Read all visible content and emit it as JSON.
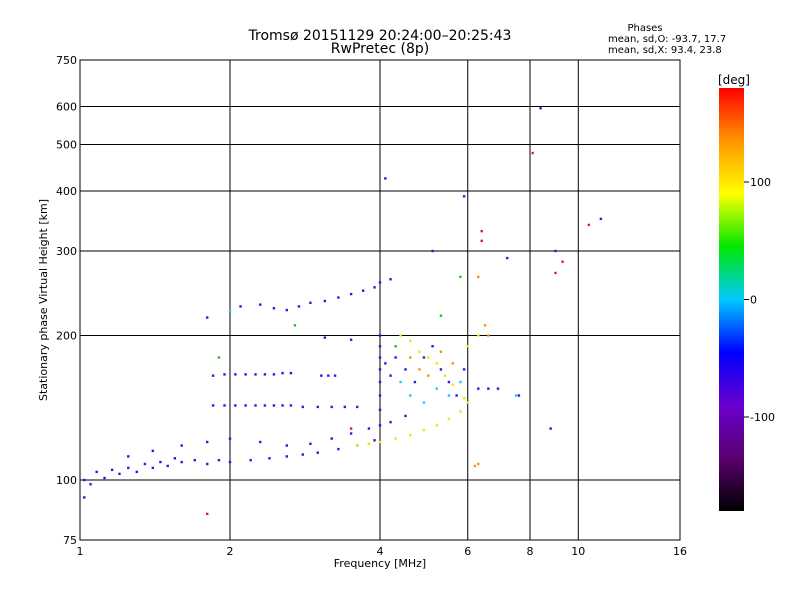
{
  "chart_data": {
    "type": "scatter",
    "title": "Tromsø 20151129 20:24:00–20:25:43",
    "subtitle": "RwPretec (8p)",
    "xlabel": "Frequency [MHz]",
    "ylabel": "Stationary phase Virtual Height [km]",
    "x_scale": "log",
    "y_scale": "log",
    "xlim": [
      1,
      16
    ],
    "ylim": [
      75,
      750
    ],
    "x_ticks": [
      1,
      2,
      4,
      6,
      8,
      10,
      16
    ],
    "y_ticks": [
      75,
      100,
      200,
      300,
      400,
      500,
      600,
      750
    ],
    "x_grid": [
      2,
      4,
      6,
      8,
      10
    ],
    "y_grid": [
      100,
      200,
      300,
      400,
      500,
      600
    ],
    "legend": {
      "heading": "Phases",
      "line_o": "mean, sd,O: -93.7, 17.7",
      "line_x": "mean, sd,X:  93.4, 23.8"
    },
    "colorbar": {
      "label": "[deg]",
      "ticks": [
        100,
        0,
        -100
      ],
      "range": [
        -180,
        180
      ],
      "scale": [
        "#000000",
        "#5a006e",
        "#6a00d0",
        "#0000ff",
        "#00c8ff",
        "#00e800",
        "#ffff00",
        "#ff9600",
        "#ff0000"
      ]
    },
    "series": [
      {
        "color": "#2020e0",
        "points": [
          [
            1.02,
            100
          ],
          [
            1.05,
            98
          ],
          [
            1.08,
            104
          ],
          [
            1.12,
            101
          ],
          [
            1.16,
            105
          ],
          [
            1.2,
            103
          ],
          [
            1.25,
            106
          ],
          [
            1.3,
            104
          ],
          [
            1.35,
            108
          ],
          [
            1.4,
            106
          ],
          [
            1.45,
            109
          ],
          [
            1.5,
            107
          ],
          [
            1.55,
            111
          ],
          [
            1.6,
            109
          ],
          [
            1.7,
            110
          ],
          [
            1.8,
            108
          ],
          [
            1.9,
            110
          ],
          [
            2.0,
            109
          ],
          [
            2.2,
            110
          ],
          [
            2.4,
            111
          ],
          [
            2.6,
            112
          ],
          [
            2.8,
            113
          ],
          [
            3.0,
            114
          ],
          [
            3.3,
            116
          ],
          [
            3.6,
            118
          ],
          [
            3.9,
            121
          ],
          [
            1.25,
            112
          ],
          [
            1.4,
            115
          ],
          [
            1.6,
            118
          ],
          [
            1.8,
            120
          ],
          [
            2.0,
            122
          ],
          [
            2.3,
            120
          ],
          [
            2.6,
            118
          ],
          [
            2.9,
            119
          ],
          [
            3.2,
            122
          ],
          [
            3.5,
            125
          ],
          [
            3.8,
            128
          ],
          [
            4.0,
            130
          ],
          [
            4.2,
            132
          ],
          [
            4.5,
            136
          ]
        ]
      },
      {
        "color": "#2020e0",
        "points": [
          [
            1.85,
            165
          ],
          [
            1.95,
            166
          ],
          [
            2.05,
            166
          ],
          [
            2.15,
            166
          ],
          [
            2.25,
            166
          ],
          [
            2.35,
            166
          ],
          [
            2.45,
            166
          ],
          [
            2.55,
            167
          ],
          [
            2.65,
            167
          ],
          [
            3.05,
            165
          ],
          [
            3.15,
            165
          ],
          [
            3.25,
            165
          ]
        ]
      },
      {
        "color": "#2020e0",
        "points": [
          [
            1.85,
            143
          ],
          [
            1.95,
            143
          ],
          [
            2.05,
            143
          ],
          [
            2.15,
            143
          ],
          [
            2.25,
            143
          ],
          [
            2.35,
            143
          ],
          [
            2.45,
            143
          ],
          [
            2.55,
            143
          ],
          [
            2.65,
            143
          ],
          [
            2.8,
            142
          ],
          [
            3.0,
            142
          ],
          [
            3.2,
            142
          ],
          [
            3.4,
            142
          ],
          [
            3.6,
            142
          ]
        ]
      },
      {
        "color": "#2020e0",
        "points": [
          [
            1.8,
            218
          ],
          [
            2.1,
            230
          ],
          [
            2.3,
            232
          ],
          [
            2.45,
            228
          ],
          [
            2.6,
            226
          ],
          [
            2.75,
            230
          ],
          [
            2.9,
            234
          ],
          [
            3.1,
            236
          ],
          [
            3.3,
            240
          ],
          [
            3.5,
            244
          ],
          [
            3.7,
            248
          ],
          [
            3.9,
            252
          ],
          [
            4.0,
            258
          ],
          [
            4.2,
            262
          ],
          [
            3.1,
            198
          ],
          [
            3.5,
            196
          ]
        ]
      },
      {
        "color": "#2020e0",
        "points": [
          [
            4.0,
            140
          ],
          [
            4.0,
            150
          ],
          [
            4.0,
            160
          ],
          [
            4.0,
            170
          ],
          [
            4.0,
            180
          ],
          [
            4.0,
            190
          ],
          [
            4.0,
            200
          ],
          [
            4.1,
            175
          ],
          [
            4.2,
            165
          ],
          [
            4.3,
            180
          ],
          [
            4.5,
            170
          ],
          [
            4.7,
            160
          ],
          [
            4.9,
            180
          ],
          [
            5.1,
            190
          ],
          [
            5.3,
            170
          ],
          [
            5.5,
            160
          ],
          [
            5.7,
            150
          ],
          [
            5.9,
            170
          ],
          [
            6.3,
            155
          ],
          [
            6.6,
            155
          ],
          [
            6.9,
            155
          ]
        ]
      },
      {
        "color": "#ffe000",
        "points": [
          [
            3.6,
            118
          ],
          [
            3.8,
            119
          ],
          [
            4.0,
            120
          ],
          [
            4.3,
            122
          ],
          [
            4.6,
            124
          ],
          [
            4.9,
            127
          ],
          [
            5.2,
            130
          ],
          [
            5.5,
            134
          ],
          [
            5.8,
            139
          ],
          [
            6.0,
            145
          ],
          [
            4.4,
            200
          ],
          [
            4.6,
            195
          ],
          [
            4.8,
            185
          ],
          [
            5.0,
            180
          ],
          [
            5.2,
            175
          ],
          [
            5.4,
            165
          ],
          [
            5.6,
            158
          ],
          [
            5.9,
            148
          ],
          [
            6.0,
            190
          ],
          [
            6.3,
            200
          ]
        ]
      },
      {
        "color": "#ff9000",
        "points": [
          [
            4.6,
            180
          ],
          [
            4.8,
            170
          ],
          [
            5.0,
            165
          ],
          [
            5.3,
            185
          ],
          [
            5.6,
            175
          ],
          [
            6.3,
            265
          ],
          [
            6.5,
            210
          ],
          [
            6.6,
            200
          ],
          [
            6.3,
            108
          ],
          [
            6.2,
            107
          ]
        ]
      },
      {
        "color": "#e02020",
        "points": [
          [
            6.4,
            330
          ],
          [
            6.4,
            315
          ],
          [
            8.1,
            480
          ],
          [
            9.0,
            270
          ],
          [
            9.3,
            285
          ],
          [
            10.5,
            340
          ],
          [
            1.8,
            85
          ],
          [
            3.5,
            128
          ]
        ]
      },
      {
        "color": "#20c8ff",
        "points": [
          [
            4.4,
            160
          ],
          [
            4.6,
            150
          ],
          [
            4.9,
            145
          ],
          [
            5.2,
            155
          ],
          [
            5.5,
            150
          ],
          [
            5.8,
            160
          ],
          [
            2.0,
            225
          ],
          [
            7.5,
            150
          ]
        ]
      },
      {
        "color": "#20c020",
        "points": [
          [
            4.3,
            190
          ],
          [
            5.3,
            220
          ],
          [
            5.8,
            265
          ],
          [
            2.7,
            210
          ],
          [
            1.9,
            180
          ]
        ]
      },
      {
        "color": "#2020e0",
        "points": [
          [
            8.4,
            595
          ],
          [
            9.0,
            300
          ],
          [
            11.1,
            350
          ],
          [
            5.9,
            390
          ],
          [
            4.1,
            425
          ],
          [
            8.8,
            128
          ],
          [
            7.6,
            150
          ],
          [
            5.1,
            300
          ],
          [
            1.02,
            92
          ],
          [
            7.2,
            290
          ]
        ]
      }
    ]
  }
}
